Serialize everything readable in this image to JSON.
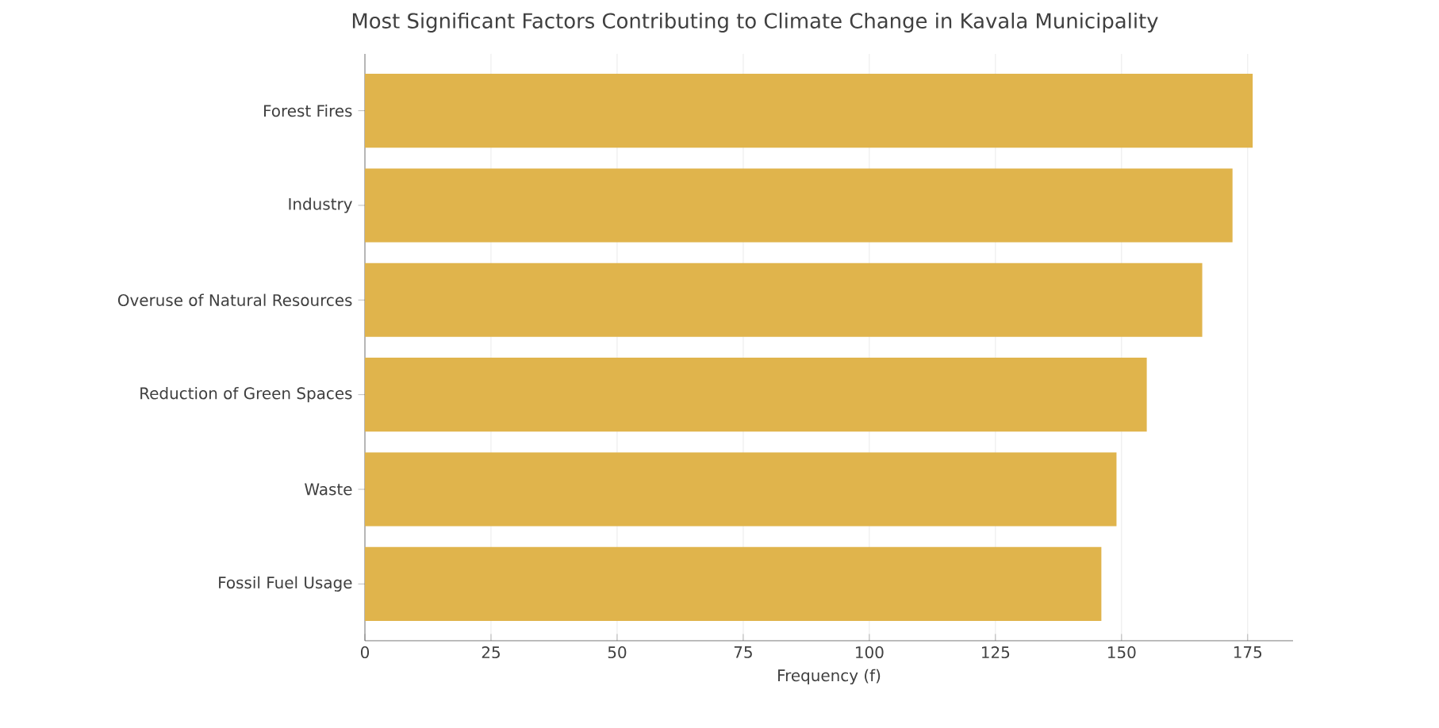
{
  "chart_data": {
    "type": "bar",
    "orientation": "horizontal",
    "title": "Most Significant Factors Contributing to Climate Change in Kavala Municipality",
    "xlabel": "Frequency (f)",
    "categories": [
      "Forest Fires",
      "Industry",
      "Overuse of Natural Resources",
      "Reduction of Green Spaces",
      "Waste",
      "Fossil Fuel Usage"
    ],
    "values": [
      176,
      172,
      166,
      155,
      149,
      146
    ],
    "color": "#e0b44c",
    "xlim": [
      0,
      184
    ],
    "xticks": [
      0,
      25,
      50,
      75,
      100,
      125,
      150,
      175
    ],
    "grid": true
  }
}
